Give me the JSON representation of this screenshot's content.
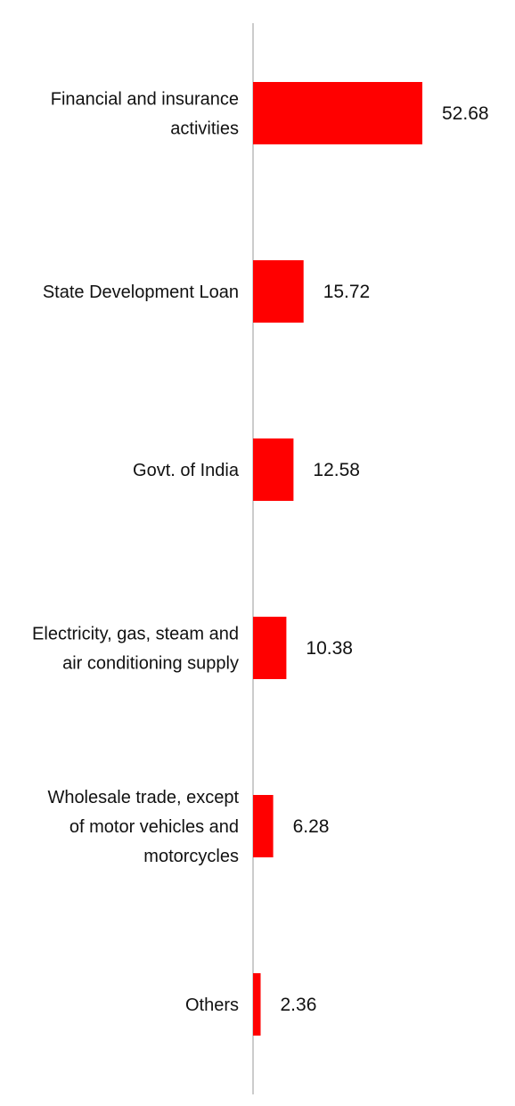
{
  "chart_data": {
    "type": "bar",
    "orientation": "horizontal",
    "categories": [
      "Financial and insurance activities",
      "State Development Loan",
      "Govt. of India",
      "Electricity, gas, steam and air conditioning supply",
      "Wholesale trade, except of motor vehicles and motorcycles",
      "Others"
    ],
    "category_lines": [
      [
        "Financial and insurance",
        "activities"
      ],
      [
        "State Development Loan"
      ],
      [
        "Govt. of India"
      ],
      [
        "Electricity, gas, steam and",
        "air conditioning supply"
      ],
      [
        "Wholesale trade, except",
        "of motor vehicles and",
        "motorcycles"
      ],
      [
        "Others"
      ]
    ],
    "values": [
      52.68,
      15.72,
      12.58,
      10.38,
      6.28,
      2.36
    ],
    "value_labels": [
      "52.68",
      "15.72",
      "12.58",
      "10.38",
      "6.28",
      "2.36"
    ],
    "title": "",
    "xlabel": "",
    "ylabel": "",
    "xlim": [
      0,
      60
    ],
    "grid": false,
    "legend": "none",
    "colors": {
      "bar": "#ff0000",
      "axis": "#cccccc",
      "text": "#111111"
    }
  }
}
